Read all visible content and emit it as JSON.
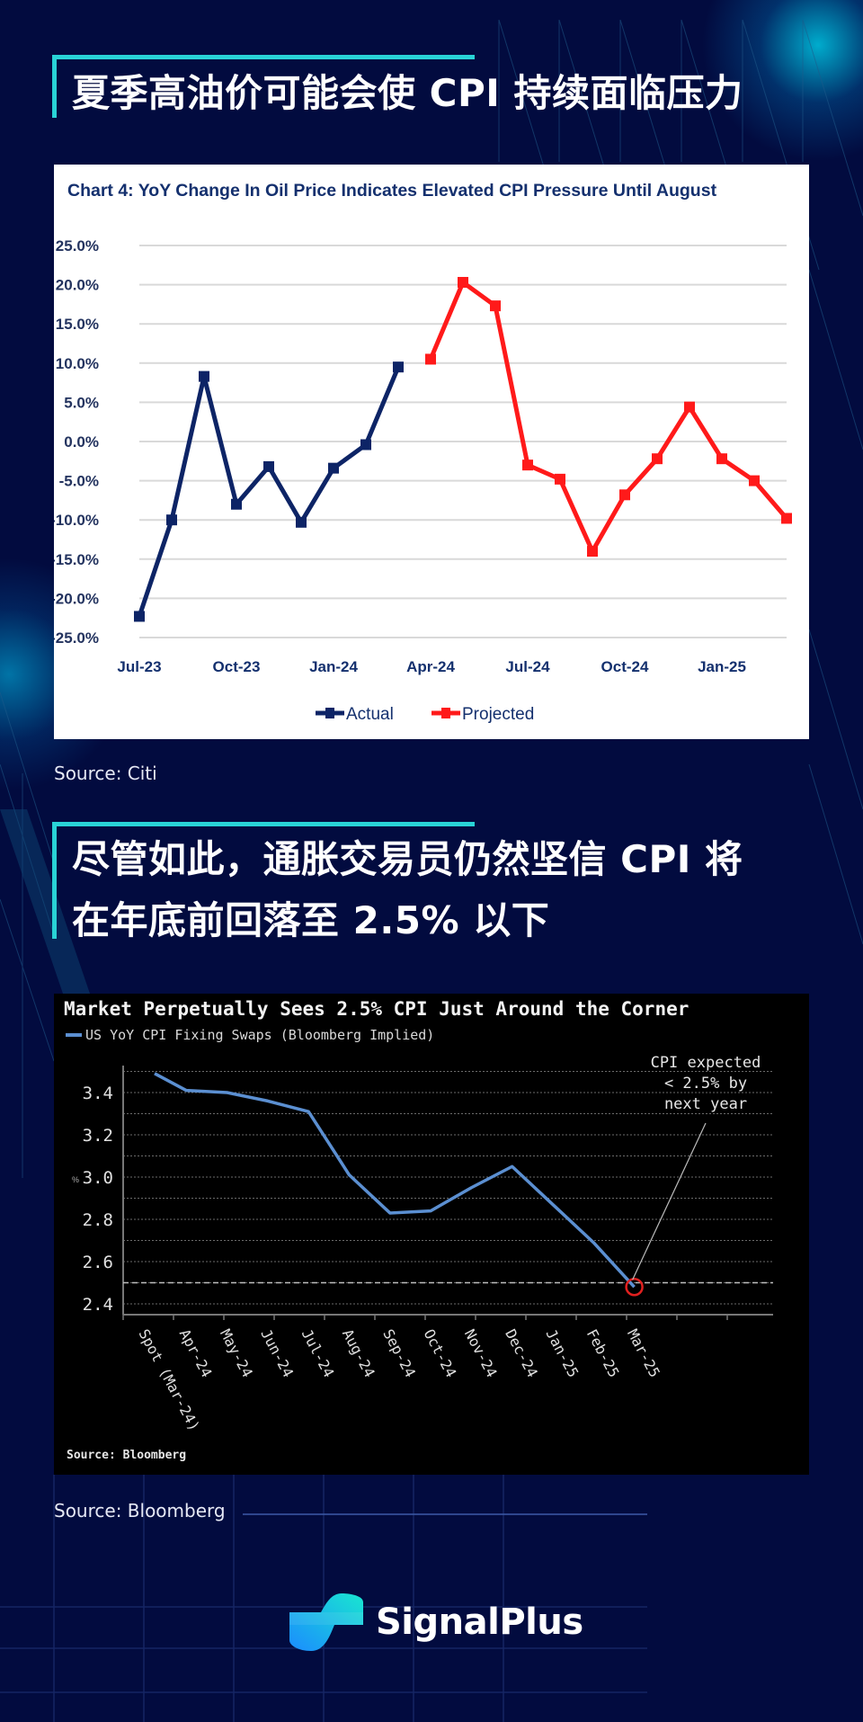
{
  "section1": {
    "heading": "夏季高油价可能会使 CPI 持续面临压力",
    "source": "Source: Citi"
  },
  "section2": {
    "heading_line1": "尽管如此，通胀交易员仍然坚信 CPI 将",
    "heading_line2": "在年底前回落至 2.5% 以下",
    "source": "Source: Bloomberg"
  },
  "brand": {
    "logo_text": "SignalPlus",
    "logo_icon": "signalplus-logo-icon",
    "accent": "#29d3d6",
    "background": "#020b3f"
  },
  "chart_data": [
    {
      "type": "line",
      "title": "Chart 4: YoY Change In Oil Price Indicates Elevated CPI Pressure Until August",
      "xlabel": "",
      "ylabel": "",
      "ylim": [
        -25,
        25
      ],
      "yticks": [
        "25.0%",
        "20.0%",
        "15.0%",
        "10.0%",
        "5.0%",
        "0.0%",
        "-5.0%",
        "-10.0%",
        "-15.0%",
        "-20.0%",
        "-25.0%"
      ],
      "xticks": [
        "Jul-23",
        "Oct-23",
        "Jan-24",
        "Apr-24",
        "Jul-24",
        "Oct-24",
        "Jan-25"
      ],
      "grid": true,
      "legend_position": "bottom",
      "x": [
        "Jul-23",
        "Aug-23",
        "Sep-23",
        "Oct-23",
        "Nov-23",
        "Dec-23",
        "Jan-24",
        "Feb-24",
        "Mar-24",
        "Apr-24",
        "May-24",
        "Jun-24",
        "Jul-24",
        "Aug-24",
        "Sep-24",
        "Oct-24",
        "Nov-24",
        "Dec-24",
        "Jan-25",
        "Feb-25",
        "Mar-25"
      ],
      "series": [
        {
          "name": "Actual",
          "color": "#0d2466",
          "values": [
            -22.3,
            -10.0,
            8.3,
            -8.0,
            -3.2,
            -10.3,
            -3.4,
            -0.4,
            9.5,
            null,
            null,
            null,
            null,
            null,
            null,
            null,
            null,
            null,
            null,
            null,
            null
          ]
        },
        {
          "name": "Projected",
          "color": "#ff1a1a",
          "values": [
            null,
            null,
            null,
            null,
            null,
            null,
            null,
            null,
            null,
            10.5,
            20.3,
            17.3,
            -3.0,
            -4.8,
            -14.0,
            -6.8,
            -2.2,
            4.4,
            -2.2,
            -5.0,
            -9.8
          ]
        }
      ],
      "legend": [
        "Actual",
        "Projected"
      ]
    },
    {
      "type": "line",
      "title": "Market Perpetually Sees 2.5% CPI Just Around the Corner",
      "xlabel": "",
      "ylabel": "%",
      "ylim": [
        2.35,
        3.55
      ],
      "yticks": [
        "3.4",
        "3.2",
        "3.0",
        "2.8",
        "2.6",
        "2.4"
      ],
      "categories": [
        "Spot (Mar-24)",
        "Apr-24",
        "May-24",
        "Jun-24",
        "Jul-24",
        "Aug-24",
        "Sep-24",
        "Oct-24",
        "Nov-24",
        "Dec-24",
        "Jan-25",
        "Feb-25",
        "Mar-25"
      ],
      "series": [
        {
          "name": "US YoY CPI Fixing Swaps (Bloomberg Implied)",
          "color": "#5b8fd1",
          "values": [
            3.49,
            3.41,
            3.4,
            3.36,
            3.31,
            3.01,
            2.83,
            2.84,
            2.95,
            3.05,
            2.87,
            2.69,
            2.48
          ]
        }
      ],
      "reference_line": {
        "y": 2.5,
        "style": "dashed"
      },
      "annotation": {
        "text_lines": [
          "CPI expected",
          "< 2.5% by",
          "next year"
        ],
        "target": "Mar-25",
        "marker": "red-circle"
      },
      "grid": true,
      "source": "Source: Bloomberg"
    }
  ]
}
